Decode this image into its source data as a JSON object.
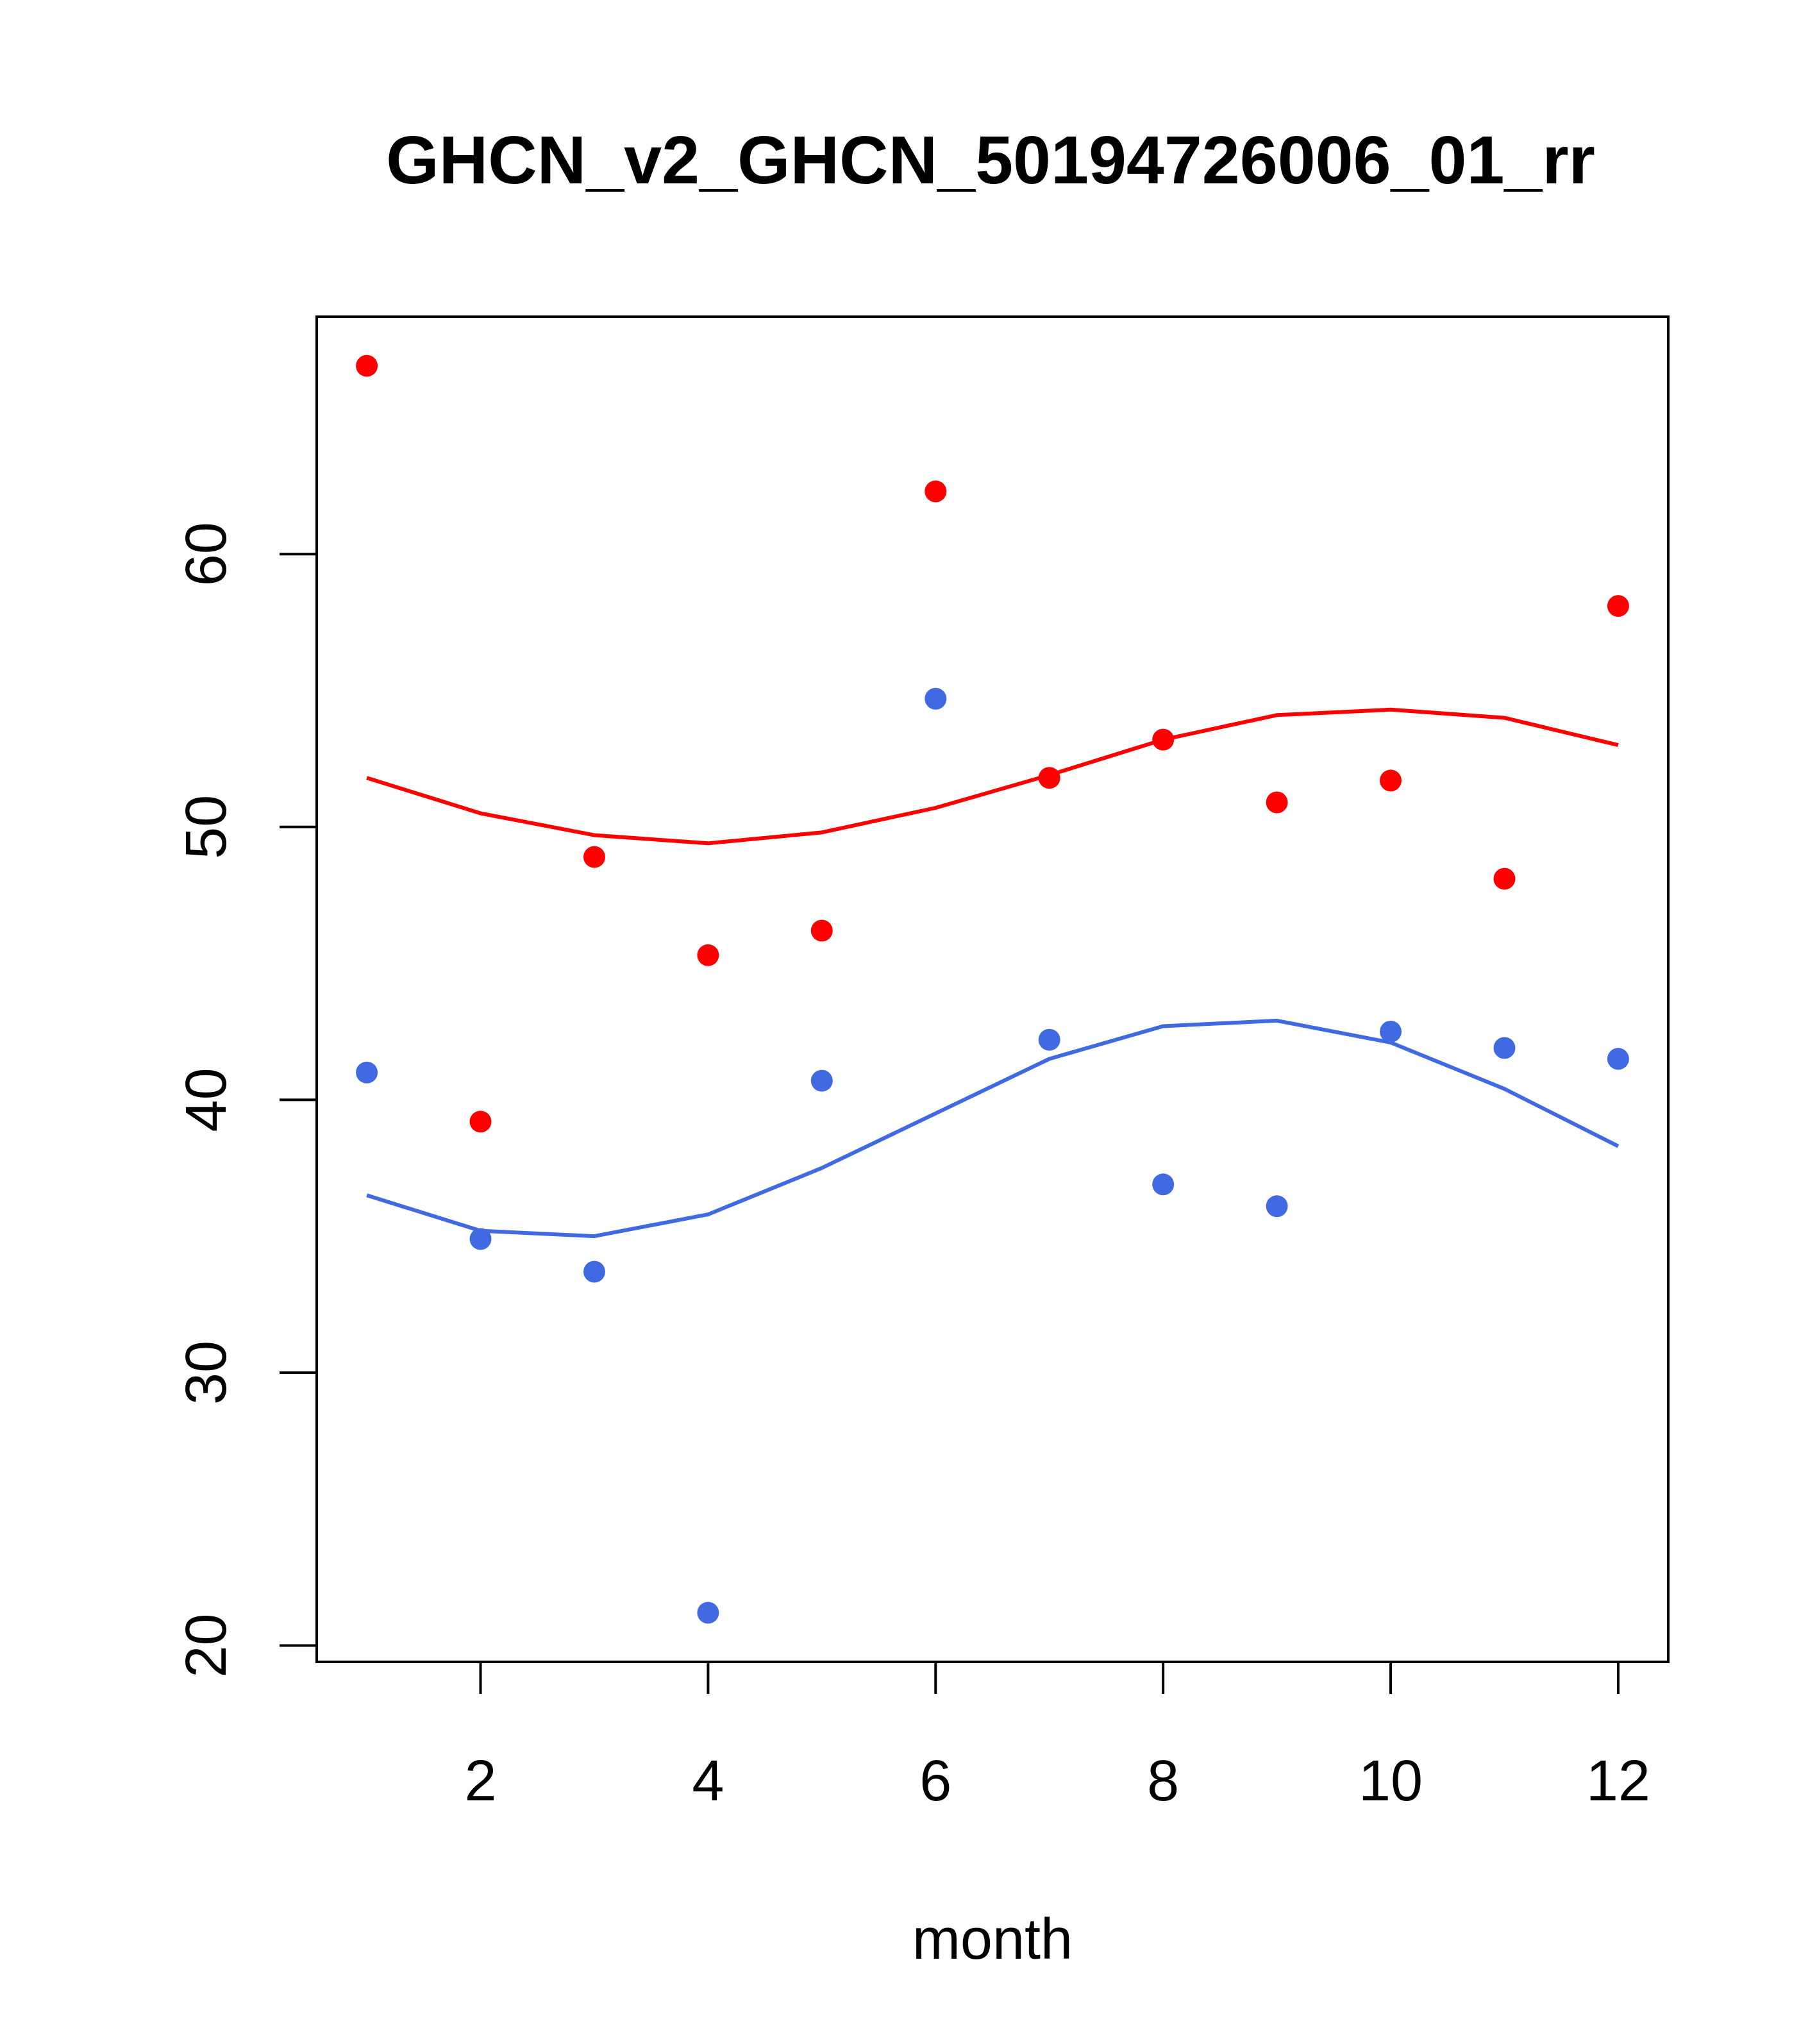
{
  "chart_data": {
    "type": "scatter",
    "title": "GHCN_v2_GHCN_50194726006_01_rr",
    "xlabel": "month",
    "ylabel": "",
    "xlim": [
      0.56,
      12.44
    ],
    "ylim": [
      19.4,
      68.7
    ],
    "x_ticks": [
      2,
      4,
      6,
      8,
      10,
      12
    ],
    "y_ticks": [
      20,
      30,
      40,
      50,
      60
    ],
    "grid": false,
    "legend": "none",
    "x": [
      1,
      2,
      3,
      4,
      5,
      6,
      7,
      8,
      9,
      10,
      11,
      12
    ],
    "series": [
      {
        "color": "#ff0000",
        "points": [
          66.9,
          39.2,
          48.9,
          45.3,
          46.2,
          62.3,
          51.8,
          53.2,
          50.9,
          51.7,
          48.1,
          58.1
        ],
        "fit": [
          51.8,
          50.5,
          49.7,
          49.4,
          49.8,
          50.7,
          51.9,
          53.2,
          54.1,
          54.3,
          54.0,
          53.0
        ]
      },
      {
        "color": "#4169e1",
        "points": [
          41.0,
          34.9,
          33.7,
          21.2,
          40.7,
          54.7,
          42.2,
          36.9,
          36.1,
          42.5,
          41.9,
          41.5
        ],
        "fit": [
          36.5,
          35.2,
          35.0,
          35.8,
          37.5,
          39.5,
          41.5,
          42.7,
          42.9,
          42.1,
          40.4,
          38.3
        ]
      }
    ]
  }
}
